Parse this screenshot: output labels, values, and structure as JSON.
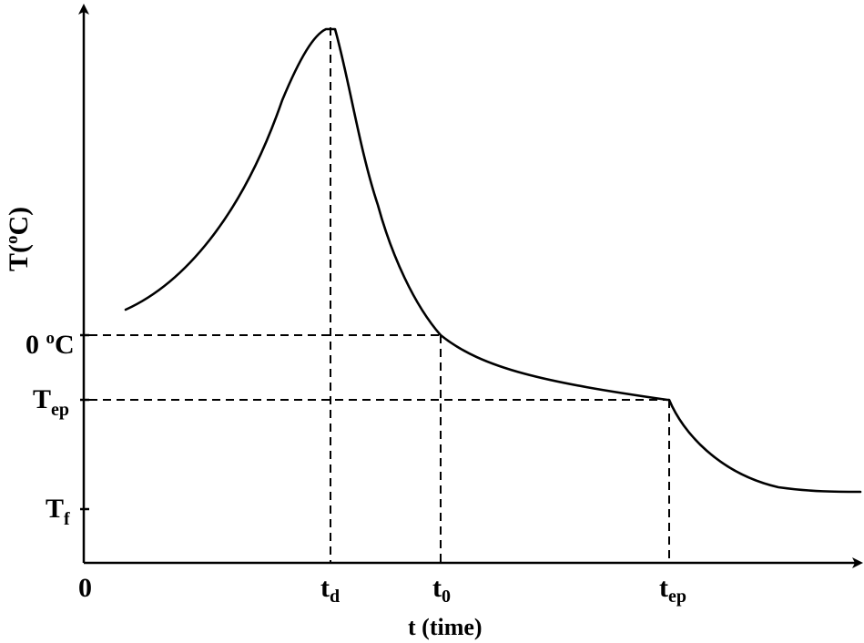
{
  "axes": {
    "y_label": "T(",
    "y_label_sup": "o",
    "y_label_end": "C)",
    "x_label": "t (time)",
    "origin_label": "0"
  },
  "y_ticks": {
    "zero": {
      "main": "0 ",
      "sup": "o",
      "end": "C"
    },
    "tep": {
      "main": "T",
      "sub": "ep"
    },
    "tf": {
      "main": "T",
      "sub": "f"
    }
  },
  "x_ticks": {
    "td": {
      "main": "t",
      "sub": "d"
    },
    "t0": {
      "main": "t",
      "sub": "0"
    },
    "tep": {
      "main": "t",
      "sub": "ep"
    }
  }
}
